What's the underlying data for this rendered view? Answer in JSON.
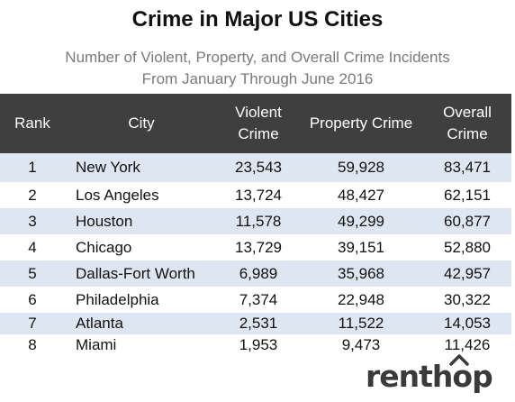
{
  "chart_data": {
    "type": "table",
    "title": "Crime in Major US Cities",
    "subtitle_lines": [
      "Number of Violent, Property, and Overall Crime Incidents",
      "From January Through June 2016"
    ],
    "columns": [
      {
        "key": "rank",
        "lines": [
          "Rank"
        ]
      },
      {
        "key": "city",
        "lines": [
          "City"
        ]
      },
      {
        "key": "violent",
        "lines": [
          "Violent",
          "Crime"
        ]
      },
      {
        "key": "property",
        "lines": [
          "Property Crime"
        ]
      },
      {
        "key": "overall",
        "lines": [
          "Overall",
          "Crime"
        ]
      }
    ],
    "rows": [
      {
        "rank": "1",
        "city": "New York",
        "violent": "23,543",
        "property": "59,928",
        "overall": "83,471"
      },
      {
        "rank": "2",
        "city": "Los Angeles",
        "violent": "13,724",
        "property": "48,427",
        "overall": "62,151"
      },
      {
        "rank": "3",
        "city": "Houston",
        "violent": "11,578",
        "property": "49,299",
        "overall": "60,877"
      },
      {
        "rank": "4",
        "city": "Chicago",
        "violent": "13,729",
        "property": "39,151",
        "overall": "52,880"
      },
      {
        "rank": "5",
        "city": "Dallas-Fort Worth",
        "violent": "6,989",
        "property": "35,968",
        "overall": "42,957"
      },
      {
        "rank": "6",
        "city": "Philadelphia",
        "violent": "7,374",
        "property": "22,948",
        "overall": "30,322"
      },
      {
        "rank": "7",
        "city": "Atlanta",
        "violent": "2,531",
        "property": "11,522",
        "overall": "14,053"
      },
      {
        "rank": "8",
        "city": "Miami",
        "violent": "1,953",
        "property": "9,473",
        "overall": "11,426"
      }
    ]
  },
  "branding": {
    "logo_text": "renthop",
    "logo_color": "#3a3a3a"
  },
  "colors": {
    "header_bg": "#3f3f3f",
    "stripe": "#dde6f1",
    "subtitle": "#7a7a7a"
  }
}
